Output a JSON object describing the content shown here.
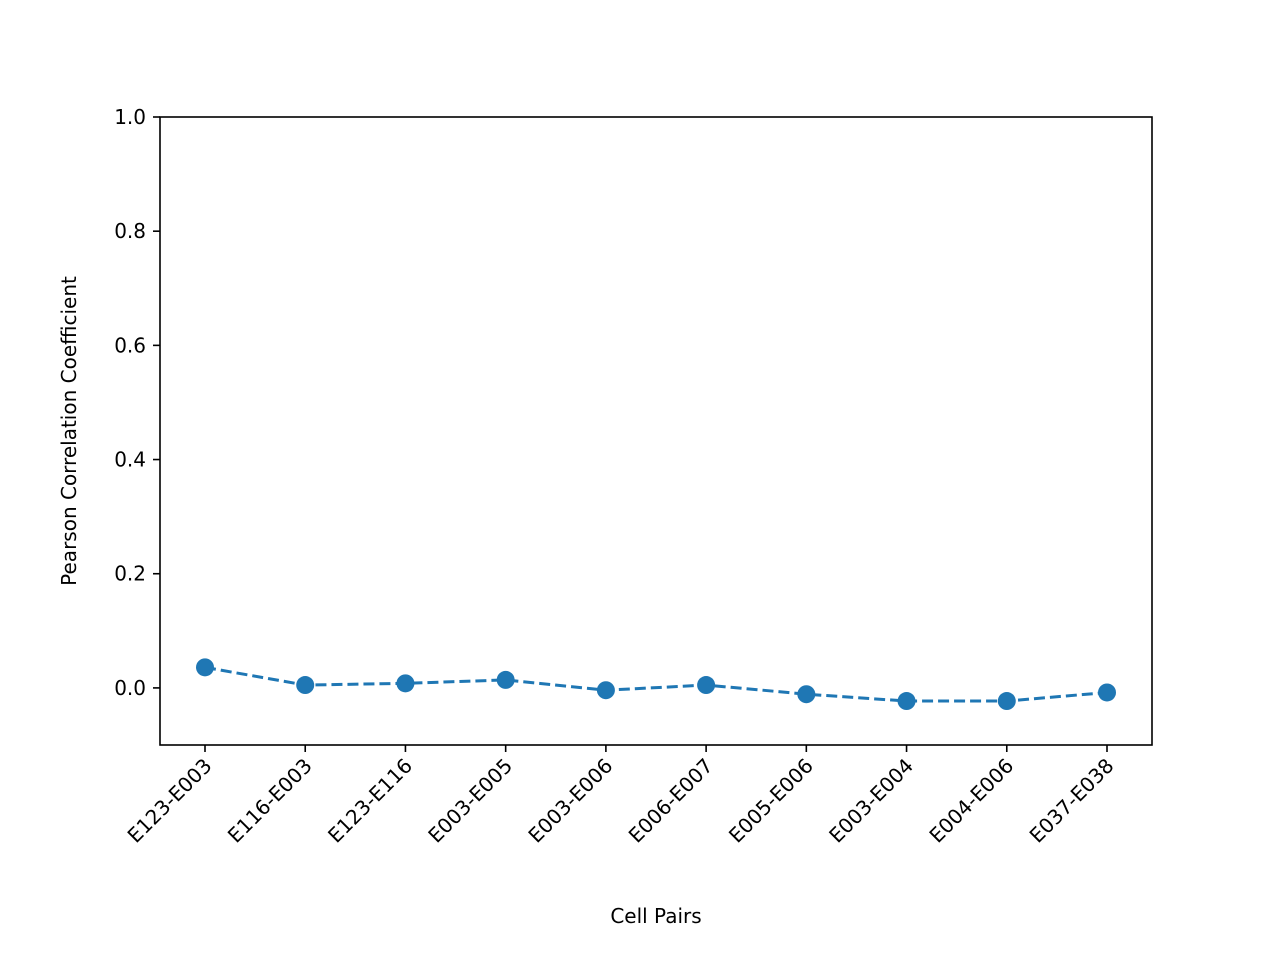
{
  "chart_data": {
    "type": "line",
    "title": "",
    "xlabel": "Cell Pairs",
    "ylabel": "Pearson Correlation Coefficient",
    "categories": [
      "E123-E003",
      "E116-E003",
      "E123-E116",
      "E003-E005",
      "E003-E006",
      "E006-E007",
      "E005-E006",
      "E003-E004",
      "E004-E006",
      "E037-E038"
    ],
    "series": [
      {
        "values": [
          0.036,
          0.005,
          0.008,
          0.014,
          -0.004,
          0.005,
          -0.011,
          -0.023,
          -0.023,
          -0.008
        ]
      }
    ],
    "ylim": [
      -0.1,
      1.0
    ],
    "yticks": [
      0.0,
      0.2,
      0.4,
      0.6,
      0.8,
      1.0
    ],
    "ytick_labels": [
      "0.0",
      "0.2",
      "0.4",
      "0.6",
      "0.8",
      "1.0"
    ],
    "line_style": "dashed",
    "marker": "circle",
    "grid": false,
    "legend": "none",
    "colors": {
      "series": "#1f77b4",
      "axes": "#000000",
      "background": "#ffffff"
    }
  }
}
